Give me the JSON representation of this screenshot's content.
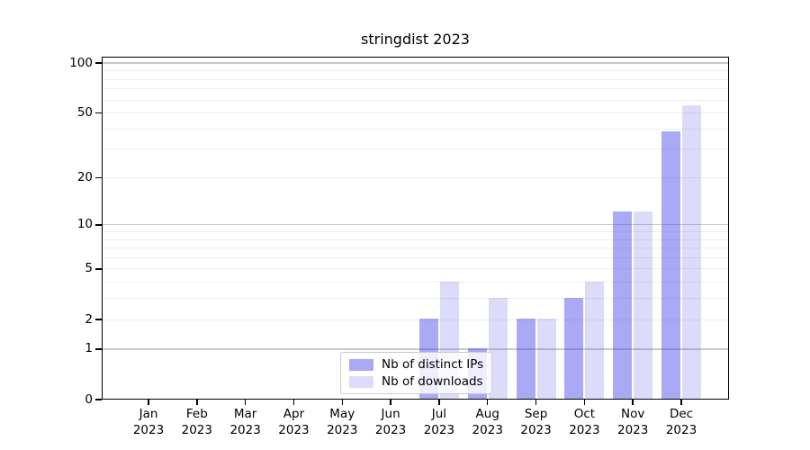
{
  "title": "stringdist 2023",
  "chart_data": {
    "type": "bar",
    "title": "stringdist 2023",
    "year": "2023",
    "categories": [
      "Jan",
      "Feb",
      "Mar",
      "Apr",
      "May",
      "Jun",
      "Jul",
      "Aug",
      "Sep",
      "Oct",
      "Nov",
      "Dec"
    ],
    "series": [
      {
        "name": "Nb of distinct IPs",
        "color": "#a9a9f5",
        "fill": "rgba(64,64,233,0.45)",
        "values": [
          0,
          0,
          0,
          0,
          0,
          0,
          2,
          1,
          2,
          3,
          12,
          38
        ]
      },
      {
        "name": "Nb of downloads",
        "color": "#dcdcfa",
        "fill": "rgba(80,80,230,0.2)",
        "values": [
          0,
          0,
          0,
          0,
          0,
          0,
          4,
          3,
          2,
          4,
          12,
          55
        ]
      }
    ],
    "yscale": "log1p",
    "yticks": [
      0,
      1,
      2,
      5,
      10,
      20,
      50,
      100
    ],
    "ylim": [
      0,
      109
    ],
    "xlabel": "",
    "ylabel": "",
    "grid": {
      "major_values": [
        1,
        10,
        100
      ],
      "minor_values": [
        2,
        3,
        4,
        5,
        6,
        7,
        8,
        9,
        20,
        30,
        40,
        50,
        60,
        70,
        80,
        90
      ],
      "major_color": "#c8c8c8",
      "minor_color": "#ededed"
    },
    "legend_position": "lower center-left inside plot"
  }
}
